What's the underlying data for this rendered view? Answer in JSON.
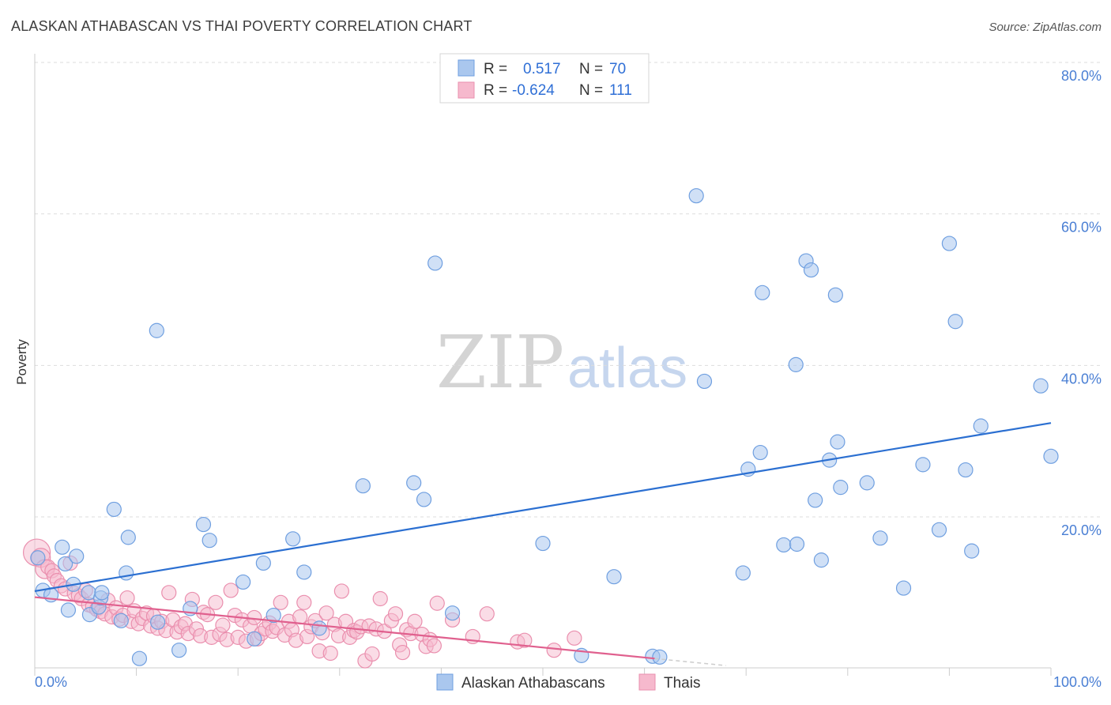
{
  "title": "ALASKAN ATHABASCAN VS THAI POVERTY CORRELATION CHART",
  "source": "Source: ZipAtlas.com",
  "watermark": {
    "zip": "ZIP",
    "atlas": "atlas"
  },
  "colors": {
    "blue_fill": "#aac7ee",
    "blue_stroke": "#6f9fe0",
    "blue_line": "#2b6fd1",
    "pink_fill": "#f6b9cd",
    "pink_stroke": "#ea8fae",
    "pink_line": "#e0608e",
    "grid": "#dddddd",
    "tick_label": "#4a7fd4"
  },
  "legend": {
    "rows": [
      {
        "r_label": "R = ",
        "r_value": "0.517",
        "n_label": "N = ",
        "n_value": "70"
      },
      {
        "r_label": "R = ",
        "r_value": "-0.624",
        "n_label": "N = ",
        "n_value": "111"
      }
    ]
  },
  "chart_data": {
    "type": "scatter",
    "xlim": [
      0,
      100
    ],
    "ylim": [
      0,
      85
    ],
    "ylabel": "Poverty",
    "x_tick_labels": [
      "0.0%",
      "100.0%"
    ],
    "y_ticks": [
      {
        "value": 20,
        "label": "20.0%"
      },
      {
        "value": 40,
        "label": "40.0%"
      },
      {
        "value": 60,
        "label": "60.0%"
      },
      {
        "value": 80,
        "label": "80.0%"
      }
    ],
    "grid": true,
    "legend_position": "top-center",
    "series": [
      {
        "name": "Alaskan Athabascans",
        "trend": {
          "x": [
            0,
            100
          ],
          "y": [
            10.2,
            32.4
          ]
        },
        "points": [
          [
            0.3,
            14.6
          ],
          [
            0.8,
            10.3
          ],
          [
            1.6,
            9.7
          ],
          [
            2.7,
            16.0
          ],
          [
            3.0,
            13.8
          ],
          [
            3.3,
            7.7
          ],
          [
            3.8,
            11.1
          ],
          [
            4.1,
            14.8
          ],
          [
            5.3,
            10.0
          ],
          [
            5.4,
            7.1
          ],
          [
            6.3,
            8.1
          ],
          [
            6.5,
            9.3
          ],
          [
            6.6,
            10.0
          ],
          [
            7.8,
            21.0
          ],
          [
            8.5,
            6.3
          ],
          [
            9.0,
            12.6
          ],
          [
            9.2,
            17.3
          ],
          [
            10.3,
            1.3
          ],
          [
            12.0,
            44.6
          ],
          [
            12.1,
            6.1
          ],
          [
            14.2,
            2.4
          ],
          [
            15.3,
            7.9
          ],
          [
            16.6,
            19.0
          ],
          [
            17.2,
            16.9
          ],
          [
            20.5,
            11.4
          ],
          [
            21.6,
            3.9
          ],
          [
            22.5,
            13.9
          ],
          [
            23.5,
            7.0
          ],
          [
            25.4,
            17.1
          ],
          [
            26.5,
            12.7
          ],
          [
            28.0,
            5.3
          ],
          [
            32.3,
            24.1
          ],
          [
            37.3,
            24.5
          ],
          [
            38.3,
            22.3
          ],
          [
            39.4,
            53.5
          ],
          [
            41.1,
            7.3
          ],
          [
            50.0,
            16.5
          ],
          [
            53.8,
            1.7
          ],
          [
            57.0,
            12.1
          ],
          [
            60.8,
            1.6
          ],
          [
            61.5,
            1.5
          ],
          [
            65.1,
            62.4
          ],
          [
            65.9,
            37.9
          ],
          [
            69.7,
            12.6
          ],
          [
            70.2,
            26.3
          ],
          [
            71.4,
            28.5
          ],
          [
            71.6,
            49.6
          ],
          [
            73.7,
            16.3
          ],
          [
            74.9,
            40.1
          ],
          [
            75.0,
            16.4
          ],
          [
            75.9,
            53.8
          ],
          [
            76.4,
            52.6
          ],
          [
            76.8,
            22.2
          ],
          [
            77.4,
            14.3
          ],
          [
            78.2,
            27.5
          ],
          [
            78.8,
            49.3
          ],
          [
            79.0,
            29.9
          ],
          [
            79.3,
            23.9
          ],
          [
            81.9,
            24.5
          ],
          [
            83.2,
            17.2
          ],
          [
            85.5,
            10.6
          ],
          [
            87.4,
            26.9
          ],
          [
            89.0,
            18.3
          ],
          [
            90.0,
            56.1
          ],
          [
            90.6,
            45.8
          ],
          [
            91.6,
            26.2
          ],
          [
            92.2,
            15.5
          ],
          [
            93.1,
            32.0
          ],
          [
            99.0,
            37.3
          ],
          [
            100.0,
            28.0
          ]
        ]
      },
      {
        "name": "Thais",
        "trend": {
          "x": [
            0,
            61
          ],
          "y": [
            9.4,
            1.3
          ]
        },
        "points": [
          [
            0.2,
            15.3
          ],
          [
            0.6,
            14.6
          ],
          [
            1.0,
            13.1
          ],
          [
            1.3,
            13.4
          ],
          [
            1.7,
            12.9
          ],
          [
            1.9,
            12.2
          ],
          [
            2.2,
            11.6
          ],
          [
            2.6,
            10.9
          ],
          [
            3.0,
            10.5
          ],
          [
            3.5,
            13.9
          ],
          [
            3.9,
            9.9
          ],
          [
            4.3,
            9.6
          ],
          [
            4.6,
            9.2
          ],
          [
            5.0,
            10.3
          ],
          [
            5.3,
            8.4
          ],
          [
            5.7,
            8.2
          ],
          [
            6.1,
            7.8
          ],
          [
            6.5,
            7.5
          ],
          [
            6.9,
            7.2
          ],
          [
            7.2,
            9.0
          ],
          [
            7.6,
            6.8
          ],
          [
            8.0,
            8.0
          ],
          [
            8.3,
            6.5
          ],
          [
            8.7,
            7.0
          ],
          [
            9.1,
            9.3
          ],
          [
            9.5,
            6.2
          ],
          [
            9.8,
            7.6
          ],
          [
            10.2,
            5.9
          ],
          [
            10.6,
            6.6
          ],
          [
            11.0,
            7.3
          ],
          [
            11.4,
            5.6
          ],
          [
            11.7,
            6.9
          ],
          [
            12.1,
            5.3
          ],
          [
            12.5,
            6.2
          ],
          [
            12.9,
            5.0
          ],
          [
            13.2,
            10.0
          ],
          [
            13.6,
            6.4
          ],
          [
            14.0,
            4.8
          ],
          [
            14.4,
            5.5
          ],
          [
            14.8,
            5.9
          ],
          [
            15.1,
            4.6
          ],
          [
            15.5,
            9.1
          ],
          [
            15.9,
            5.2
          ],
          [
            16.3,
            4.3
          ],
          [
            16.6,
            7.4
          ],
          [
            17.0,
            7.1
          ],
          [
            17.4,
            4.1
          ],
          [
            17.8,
            8.7
          ],
          [
            18.2,
            4.5
          ],
          [
            18.5,
            5.7
          ],
          [
            18.9,
            3.8
          ],
          [
            19.3,
            10.3
          ],
          [
            19.7,
            7.0
          ],
          [
            20.0,
            4.1
          ],
          [
            20.4,
            6.4
          ],
          [
            20.8,
            3.6
          ],
          [
            21.2,
            5.6
          ],
          [
            21.6,
            6.7
          ],
          [
            21.9,
            3.9
          ],
          [
            22.3,
            4.6
          ],
          [
            22.7,
            5.2
          ],
          [
            23.1,
            6.0
          ],
          [
            23.4,
            4.9
          ],
          [
            23.8,
            5.4
          ],
          [
            24.2,
            8.7
          ],
          [
            24.6,
            4.4
          ],
          [
            25.0,
            6.2
          ],
          [
            25.3,
            5.1
          ],
          [
            25.7,
            3.7
          ],
          [
            26.1,
            6.8
          ],
          [
            26.5,
            8.7
          ],
          [
            26.8,
            4.2
          ],
          [
            27.2,
            5.5
          ],
          [
            27.6,
            6.3
          ],
          [
            28.0,
            2.3
          ],
          [
            28.3,
            4.7
          ],
          [
            28.7,
            7.3
          ],
          [
            29.1,
            2.0
          ],
          [
            29.5,
            5.8
          ],
          [
            29.9,
            4.3
          ],
          [
            30.2,
            10.2
          ],
          [
            30.6,
            6.2
          ],
          [
            31.0,
            4.1
          ],
          [
            31.4,
            5.0
          ],
          [
            31.7,
            4.8
          ],
          [
            32.1,
            5.5
          ],
          [
            32.5,
            1.0
          ],
          [
            32.9,
            5.6
          ],
          [
            33.2,
            1.9
          ],
          [
            33.6,
            5.2
          ],
          [
            34.0,
            9.2
          ],
          [
            34.4,
            4.9
          ],
          [
            35.1,
            6.3
          ],
          [
            35.5,
            7.2
          ],
          [
            35.9,
            3.1
          ],
          [
            36.2,
            2.1
          ],
          [
            36.6,
            5.1
          ],
          [
            37.0,
            4.6
          ],
          [
            37.4,
            6.2
          ],
          [
            38.1,
            4.5
          ],
          [
            38.5,
            2.9
          ],
          [
            38.9,
            3.8
          ],
          [
            39.3,
            3.0
          ],
          [
            39.6,
            8.6
          ],
          [
            41.1,
            6.4
          ],
          [
            43.1,
            4.2
          ],
          [
            44.5,
            7.2
          ],
          [
            47.5,
            3.5
          ],
          [
            48.2,
            3.7
          ],
          [
            51.1,
            2.4
          ],
          [
            53.1,
            4.0
          ]
        ]
      }
    ]
  }
}
